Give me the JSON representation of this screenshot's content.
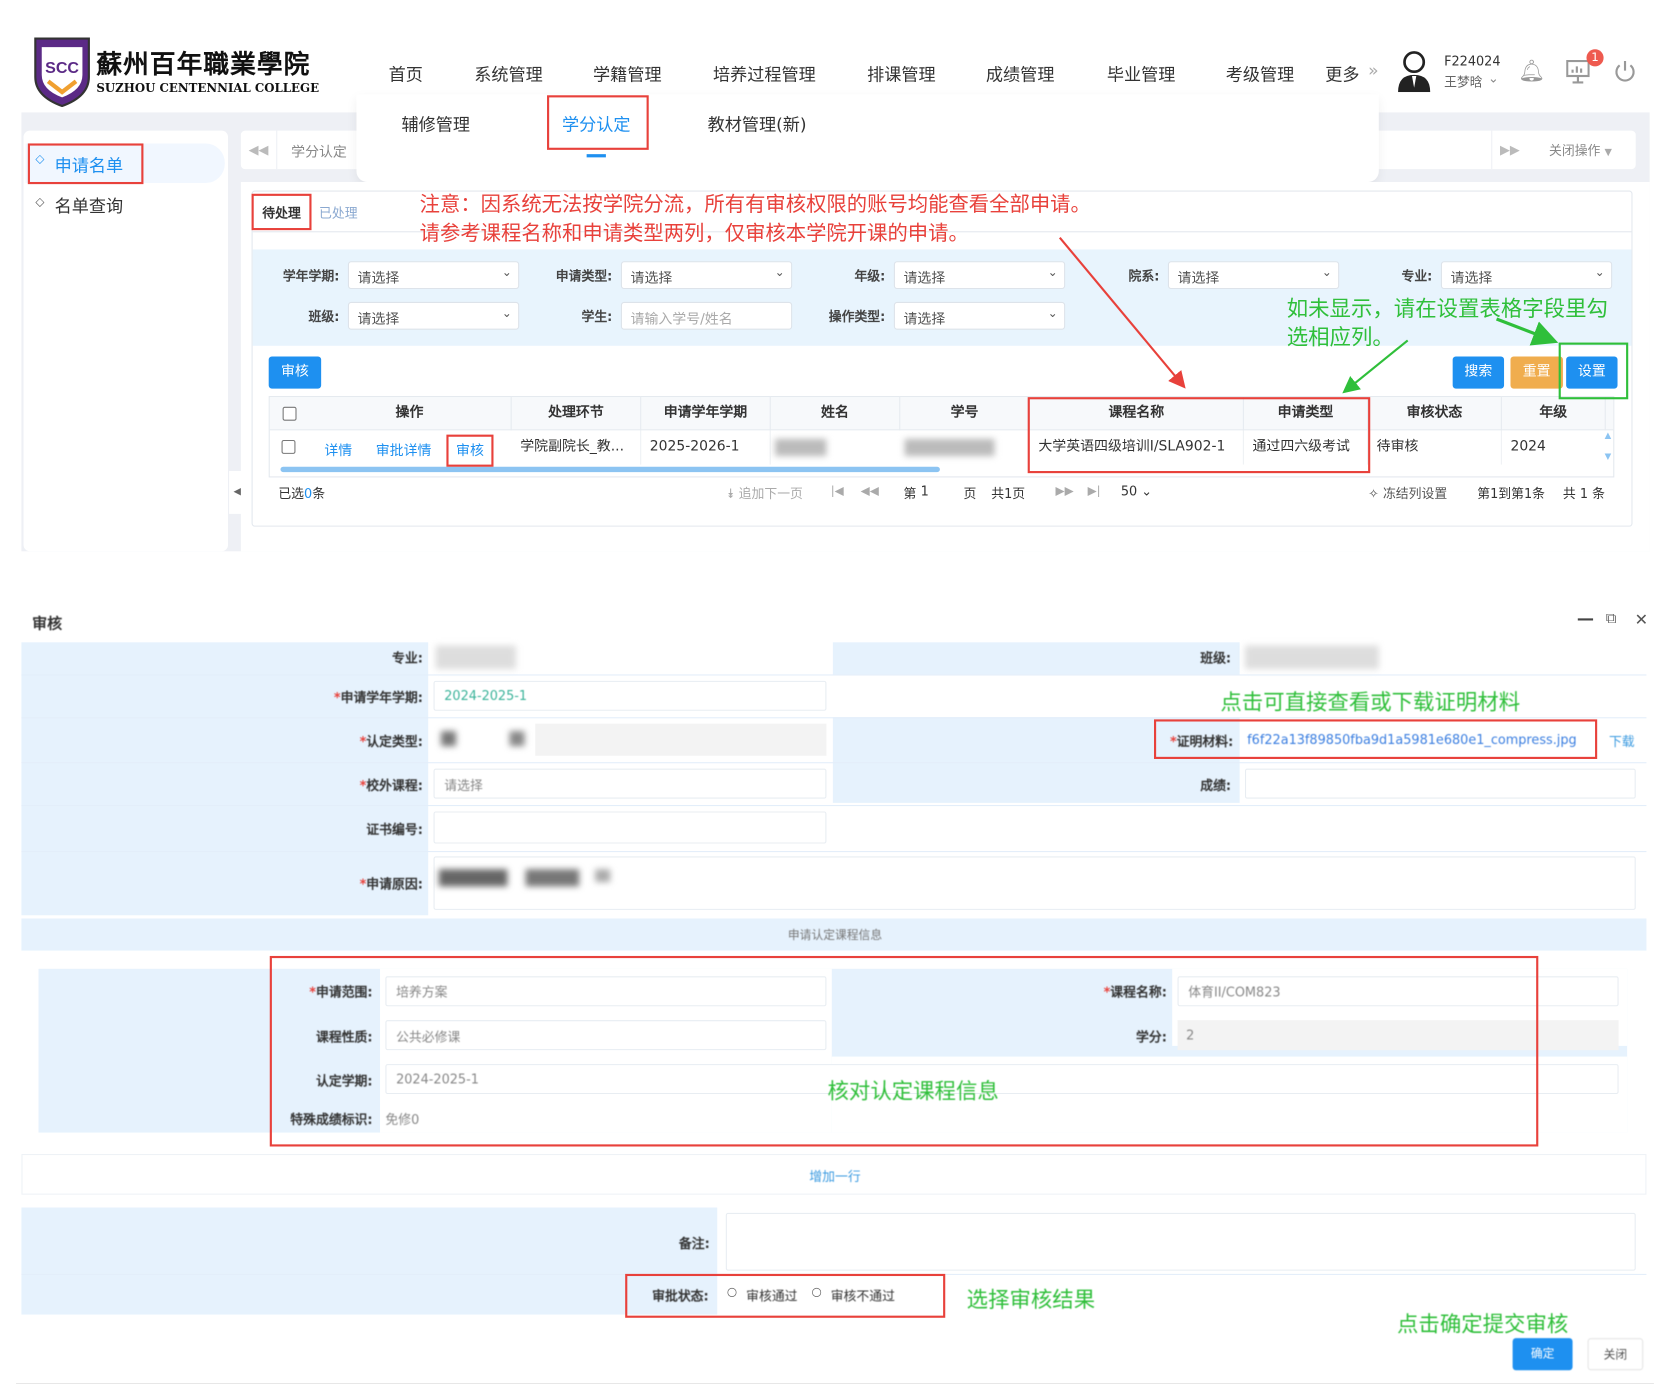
{
  "header": {
    "logo_cn": "蘇州百年職業學院",
    "logo_en": "SUZHOU CENTENNIAL COLLEGE",
    "logo_badge": "SCC",
    "nav": [
      "首页",
      "系统管理",
      "学籍管理",
      "培养过程管理",
      "排课管理",
      "成绩管理",
      "毕业管理",
      "考级管理",
      "更多"
    ],
    "more_icon": "double-chevron-right",
    "user_id": "F224024",
    "user_name": "王梦晗",
    "notification_badge": "1",
    "submenu": [
      "辅修管理",
      "学分认定",
      "教材管理(新)"
    ],
    "submenu_active": "学分认定"
  },
  "sidebar": {
    "items": [
      "申请名单",
      "名单查询"
    ],
    "active": "申请名单"
  },
  "tabbar": {
    "tab": "学分认定",
    "close_ops": "关闭操作"
  },
  "panel": {
    "tabs": [
      "待处理",
      "已处理"
    ],
    "notice_line1": "注意：因系统无法按学院分流，所有有审核权限的账号均能查看全部申请。",
    "notice_line2": "请参考课程名称和申请类型两列，仅审核本学院开课的申请。",
    "hint_line1": "如未显示，请在设置表格字段里勾",
    "hint_line2": "选相应列。",
    "filters": [
      {
        "label": "学年学期:",
        "value": "请选择"
      },
      {
        "label": "申请类型:",
        "value": "请选择"
      },
      {
        "label": "年级:",
        "value": "请选择"
      },
      {
        "label": "院系:",
        "value": "请选择"
      },
      {
        "label": "专业:",
        "value": "请选择"
      },
      {
        "label": "班级:",
        "value": "请选择"
      },
      {
        "label": "学生:",
        "placeholder": "请输入学号/姓名"
      },
      {
        "label": "操作类型:",
        "value": "请选择"
      }
    ],
    "buttons": {
      "audit": "审核",
      "search": "搜索",
      "reset": "重置",
      "settings": "设置"
    },
    "colors": {
      "primary": "#1e90f0",
      "reset": "#f0ad4e",
      "annotation_red": "#e8413b",
      "annotation_green": "#2fbf3a"
    },
    "table": {
      "columns": [
        "操作",
        "处理环节",
        "申请学年学期",
        "姓名",
        "学号",
        "课程名称",
        "申请类型",
        "审核状态",
        "年级"
      ],
      "rows": [
        {
          "actions": [
            "详情",
            "审批详情",
            "审核"
          ],
          "stage": "学院副院长_教...",
          "term": "2025-2026-1",
          "name": "",
          "student_no": "",
          "course": "大学英语四级培训I/SLA902-1",
          "type": "通过四六级考试",
          "status": "待审核",
          "grade": "2024"
        }
      ]
    },
    "footer": {
      "selected_prefix": "已选",
      "selected_count": "0",
      "selected_suffix": "条",
      "append_next": "追加下一页",
      "page_prefix": "第",
      "page": "1",
      "page_suffix": "页",
      "total_pages": "共1页",
      "page_size": "50",
      "freeze": "冻结列设置",
      "range": "第1到第1条",
      "total": "共 1 条"
    }
  },
  "dialog": {
    "title": "审核",
    "fields": {
      "major_label": "专业:",
      "class_label": "班级:",
      "term_label": "申请学年学期:",
      "term_value": "2024-2025-1",
      "type_label": "认定类型:",
      "proof_label": "证明材料:",
      "proof_file": "f6f22a13f89850fba9d1a5981e680e1_compress.jpg",
      "download": "下载",
      "ext_course_label": "校外课程:",
      "ext_course_value": "请选择",
      "score_label": "成绩:",
      "cert_label": "证书编号:",
      "reason_label": "申请原因:",
      "section_title": "申请认定课程信息",
      "scope_label": "申请范围:",
      "scope_value": "培养方案",
      "course_label": "课程名称:",
      "course_value": "体育II/COM823",
      "nature_label": "课程性质:",
      "nature_value": "公共必修课",
      "credit_label": "学分:",
      "credit_value": "2",
      "rec_term_label": "认定学期:",
      "rec_term_value": "2024-2025-1",
      "special_label": "特殊成绩标识:",
      "special_value": "免修0",
      "add_row": "增加一行",
      "remark_label": "备注:",
      "approval_label": "审批状态:",
      "approve": "审核通过",
      "reject": "审核不通过",
      "confirm": "确定",
      "close": "关闭"
    },
    "annotations": {
      "proof": "点击可直接查看或下载证明材料",
      "course": "核对认定课程信息",
      "result": "选择审核结果",
      "submit": "点击确定提交审核"
    }
  }
}
